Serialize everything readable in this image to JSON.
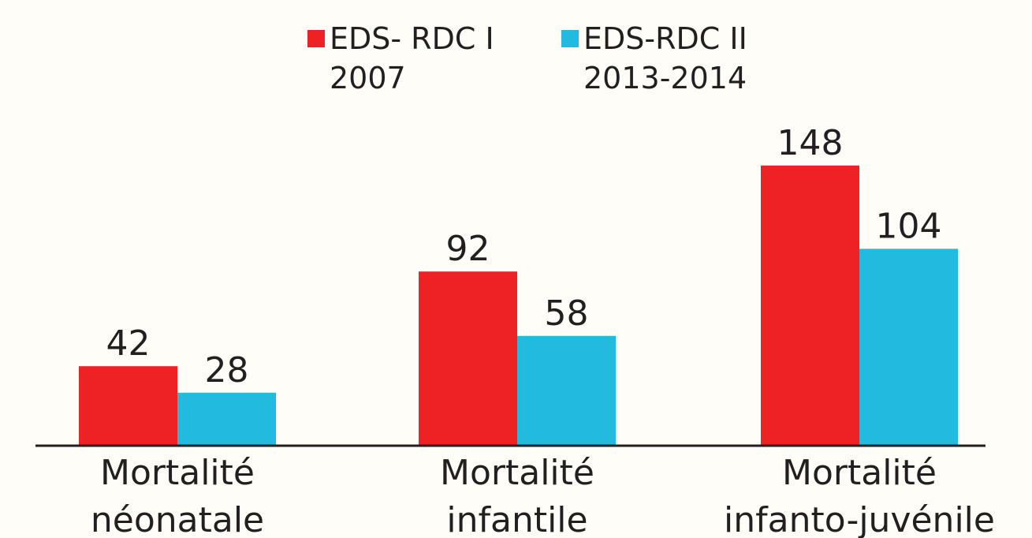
{
  "chart_data": {
    "type": "bar",
    "categories": [
      [
        "Mortalité",
        "néonatale"
      ],
      [
        "Mortalité",
        "infantile"
      ],
      [
        "Mortalité",
        "infanto-juvénile"
      ]
    ],
    "series": [
      {
        "name": [
          "EDS- RDC I",
          "2007"
        ],
        "color": "#ee2224",
        "values": [
          42,
          92,
          148
        ]
      },
      {
        "name": [
          "EDS-RDC II",
          "2013-2014"
        ],
        "color": "#22bbdf",
        "values": [
          28,
          58,
          104
        ]
      }
    ],
    "ylim": [
      0,
      200
    ]
  }
}
